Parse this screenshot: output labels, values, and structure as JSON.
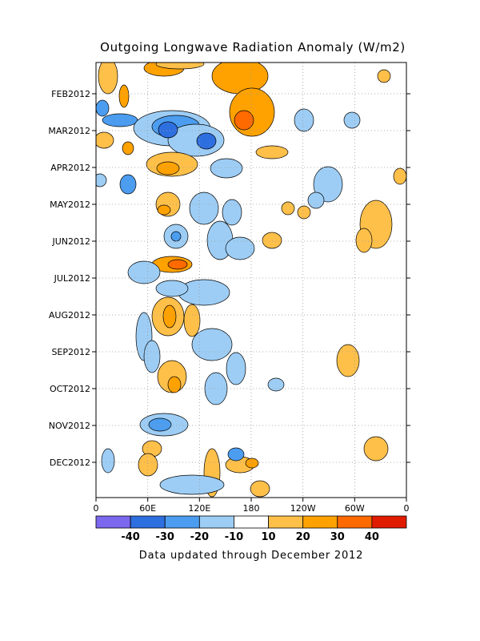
{
  "chart_data": {
    "type": "heatmap",
    "title": "Outgoing Longwave Radiation Anomaly (W/m2)",
    "footer": "Data updated through December 2012",
    "x_ticks": [
      "0",
      "60E",
      "120E",
      "180",
      "120W",
      "60W",
      "0"
    ],
    "y_ticks": [
      "FEB2012",
      "MAR2012",
      "APR2012",
      "MAY2012",
      "JUN2012",
      "JUL2012",
      "AUG2012",
      "SEP2012",
      "OCT2012",
      "NOV2012",
      "DEC2012"
    ],
    "colorbar": {
      "labels": [
        "-40",
        "-30",
        "-20",
        "-10",
        "10",
        "20",
        "30",
        "40"
      ],
      "colors": [
        "#7b68ee",
        "#2e6fe0",
        "#4c9df0",
        "#9dcdf5",
        "#ffffff",
        "#ffc04a",
        "#ffa200",
        "#ff6a00",
        "#e01b00"
      ]
    },
    "grid": true
  }
}
